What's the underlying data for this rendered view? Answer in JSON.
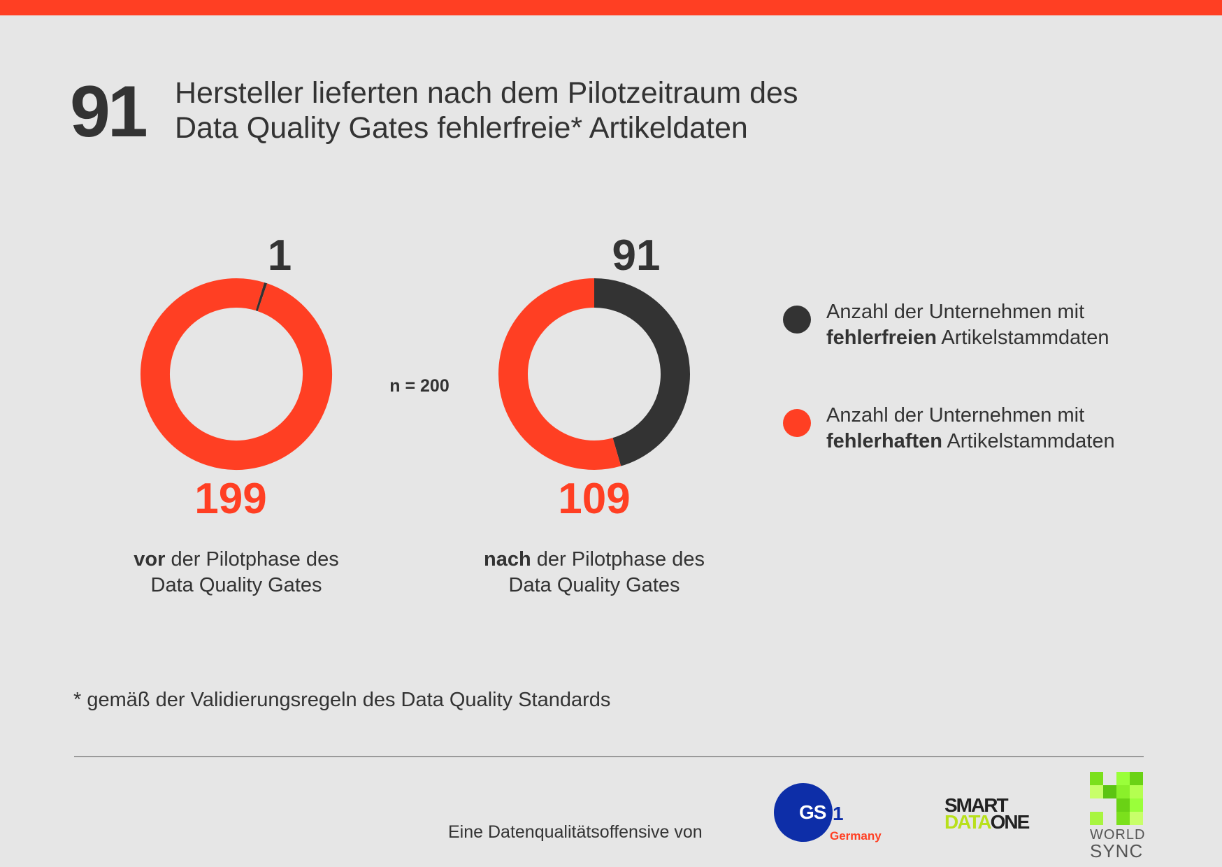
{
  "colors": {
    "accent": "#ff3f23",
    "dark": "#333333",
    "background": "#e6e6e6"
  },
  "headline": {
    "number": "91",
    "line1": "Hersteller lieferten nach dem Pilotzeitraum des",
    "line2": "Data Quality Gates fehlerfreie* Artikeldaten"
  },
  "n_label": "n = 200",
  "chart_data": [
    {
      "type": "pie",
      "style": "donut",
      "total": 200,
      "slices": [
        {
          "label": "fehlerfrei",
          "value": 1,
          "color": "#333333"
        },
        {
          "label": "fehlerhaft",
          "value": 199,
          "color": "#ff3f23"
        }
      ],
      "value_labels": {
        "top": "1",
        "bottom": "199"
      },
      "caption_bold": "vor",
      "caption_rest": " der Pilotphase des",
      "caption_line2": "Data Quality Gates"
    },
    {
      "type": "pie",
      "style": "donut",
      "total": 200,
      "slices": [
        {
          "label": "fehlerfrei",
          "value": 91,
          "color": "#333333"
        },
        {
          "label": "fehlerhaft",
          "value": 109,
          "color": "#ff3f23"
        }
      ],
      "value_labels": {
        "top": "91",
        "bottom": "109"
      },
      "caption_bold": "nach",
      "caption_rest": " der Pilotphase des",
      "caption_line2": "Data Quality Gates"
    }
  ],
  "legend": [
    {
      "line1": "Anzahl der Unternehmen mit",
      "bold": "fehlerfreien",
      "rest": " Artikelstammdaten",
      "color": "#333333"
    },
    {
      "line1": "Anzahl der Unternehmen mit",
      "bold": "fehlerhaften",
      "rest": " Artikelstammdaten",
      "color": "#ff3f23"
    }
  ],
  "footnote": "* gemäß der Validierungsregeln des Data Quality Standards",
  "footer": {
    "text": "Eine Datenqualitätsoffensive von",
    "logos": {
      "gs1": {
        "mark": "GS",
        "one": "1",
        "sub": "Germany"
      },
      "smartdataone": {
        "line1": "SMART",
        "data": "DATA",
        "one": "ONE"
      },
      "worldsync": {
        "line1": "WORLD",
        "line2": "SYNC"
      }
    }
  }
}
